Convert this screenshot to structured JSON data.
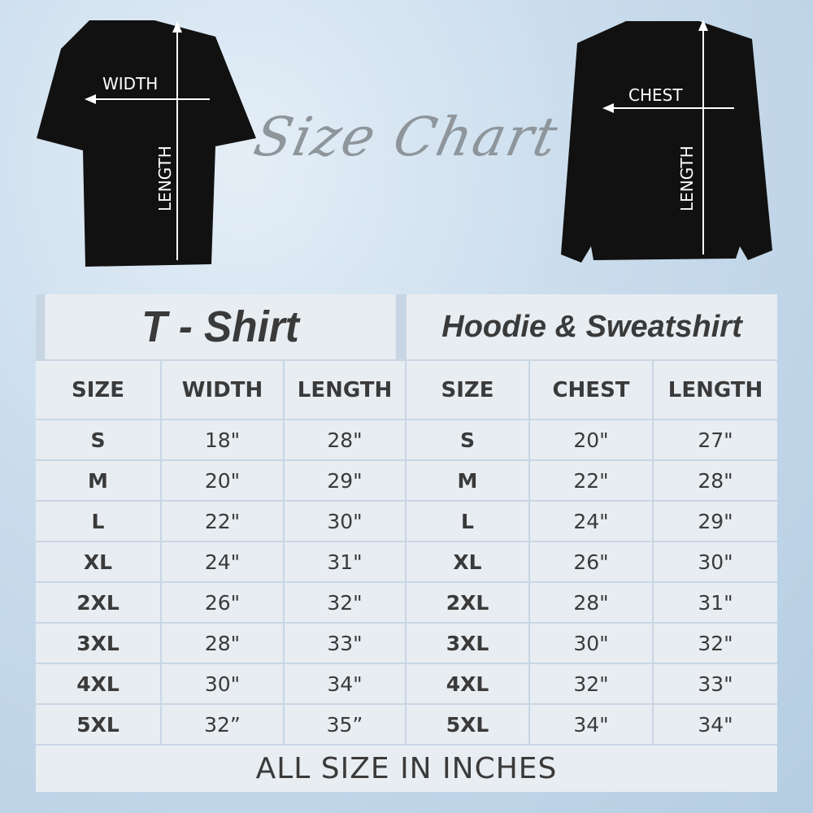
{
  "title": "Size Chart",
  "tshirt_diagram": {
    "width_label": "WIDTH",
    "length_label": "LENGTH"
  },
  "sweatshirt_diagram": {
    "chest_label": "CHEST",
    "length_label": "LENGTH"
  },
  "tshirt": {
    "title": "T - Shirt",
    "headers": [
      "SIZE",
      "WIDTH",
      "LENGTH"
    ],
    "rows": [
      [
        "S",
        "18\"",
        "28\""
      ],
      [
        "M",
        "20\"",
        "29\""
      ],
      [
        "L",
        "22\"",
        "30\""
      ],
      [
        "XL",
        "24\"",
        "31\""
      ],
      [
        "2XL",
        "26\"",
        "32\""
      ],
      [
        "3XL",
        "28\"",
        "33\""
      ],
      [
        "4XL",
        "30\"",
        "34\""
      ],
      [
        "5XL",
        "32”",
        "35”"
      ]
    ]
  },
  "hoodie": {
    "title": "Hoodie & Sweatshirt",
    "headers": [
      "SIZE",
      "CHEST",
      "LENGTH"
    ],
    "rows": [
      [
        "S",
        "20\"",
        "27\""
      ],
      [
        "M",
        "22\"",
        "28\""
      ],
      [
        "L",
        "24\"",
        "29\""
      ],
      [
        "XL",
        "26\"",
        "30\""
      ],
      [
        "2XL",
        "28\"",
        "31\""
      ],
      [
        "3XL",
        "30\"",
        "32\""
      ],
      [
        "4XL",
        "32\"",
        "33\""
      ],
      [
        "5XL",
        "34\"",
        "34\""
      ]
    ]
  },
  "footer": "ALL SIZE IN INCHES",
  "colors": {
    "cell": "#e8edf2",
    "border": "#c8d6e4",
    "text": "#3a3a3a",
    "garment": "#111111"
  }
}
